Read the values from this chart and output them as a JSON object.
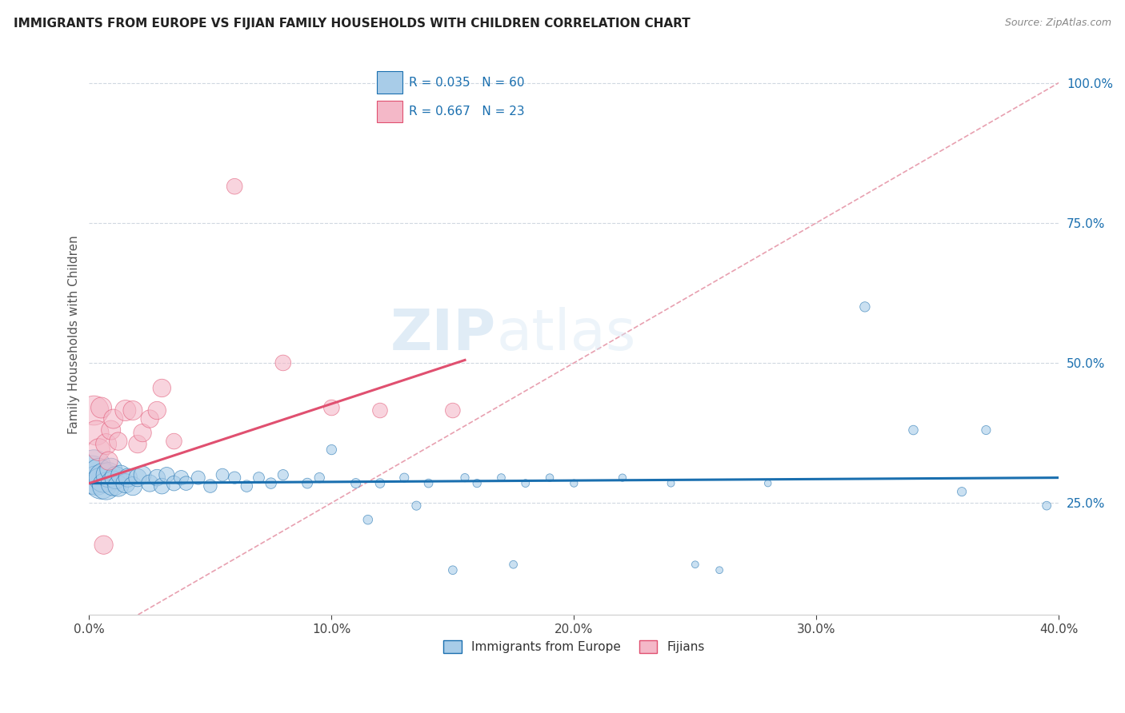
{
  "title": "IMMIGRANTS FROM EUROPE VS FIJIAN FAMILY HOUSEHOLDS WITH CHILDREN CORRELATION CHART",
  "source": "Source: ZipAtlas.com",
  "xlabel_blue": "Immigrants from Europe",
  "xlabel_pink": "Fijians",
  "ylabel": "Family Households with Children",
  "xmin": 0.0,
  "xmax": 0.4,
  "ymin": 0.05,
  "ymax": 1.05,
  "R_blue": 0.035,
  "N_blue": 60,
  "R_pink": 0.667,
  "N_pink": 23,
  "color_blue": "#a8cce8",
  "color_pink": "#f4b8c8",
  "trendline_blue": "#1a6faf",
  "trendline_pink": "#e05070",
  "ref_line_color": "#e8a0b0",
  "yticks": [
    0.25,
    0.5,
    0.75,
    1.0
  ],
  "ytick_labels": [
    "25.0%",
    "50.0%",
    "75.0%",
    "100.0%"
  ],
  "xticks": [
    0.0,
    0.1,
    0.2,
    0.3,
    0.4
  ],
  "xtick_labels": [
    "0.0%",
    "10.0%",
    "20.0%",
    "30.0%",
    "40.0%"
  ],
  "blue_points": [
    [
      0.001,
      0.3
    ],
    [
      0.002,
      0.315
    ],
    [
      0.003,
      0.29
    ],
    [
      0.004,
      0.305
    ],
    [
      0.005,
      0.285
    ],
    [
      0.006,
      0.295
    ],
    [
      0.007,
      0.28
    ],
    [
      0.008,
      0.3
    ],
    [
      0.009,
      0.31
    ],
    [
      0.01,
      0.285
    ],
    [
      0.011,
      0.295
    ],
    [
      0.012,
      0.28
    ],
    [
      0.013,
      0.3
    ],
    [
      0.015,
      0.285
    ],
    [
      0.016,
      0.295
    ],
    [
      0.018,
      0.28
    ],
    [
      0.02,
      0.295
    ],
    [
      0.022,
      0.3
    ],
    [
      0.025,
      0.285
    ],
    [
      0.028,
      0.295
    ],
    [
      0.03,
      0.28
    ],
    [
      0.032,
      0.3
    ],
    [
      0.035,
      0.285
    ],
    [
      0.038,
      0.295
    ],
    [
      0.04,
      0.285
    ],
    [
      0.045,
      0.295
    ],
    [
      0.05,
      0.28
    ],
    [
      0.055,
      0.3
    ],
    [
      0.06,
      0.295
    ],
    [
      0.065,
      0.28
    ],
    [
      0.07,
      0.295
    ],
    [
      0.075,
      0.285
    ],
    [
      0.08,
      0.3
    ],
    [
      0.09,
      0.285
    ],
    [
      0.095,
      0.295
    ],
    [
      0.1,
      0.345
    ],
    [
      0.11,
      0.285
    ],
    [
      0.115,
      0.22
    ],
    [
      0.12,
      0.285
    ],
    [
      0.13,
      0.295
    ],
    [
      0.135,
      0.245
    ],
    [
      0.14,
      0.285
    ],
    [
      0.15,
      0.13
    ],
    [
      0.155,
      0.295
    ],
    [
      0.16,
      0.285
    ],
    [
      0.17,
      0.295
    ],
    [
      0.175,
      0.14
    ],
    [
      0.18,
      0.285
    ],
    [
      0.19,
      0.295
    ],
    [
      0.2,
      0.285
    ],
    [
      0.22,
      0.295
    ],
    [
      0.24,
      0.285
    ],
    [
      0.25,
      0.14
    ],
    [
      0.26,
      0.13
    ],
    [
      0.28,
      0.285
    ],
    [
      0.32,
      0.6
    ],
    [
      0.34,
      0.38
    ],
    [
      0.36,
      0.27
    ],
    [
      0.37,
      0.38
    ],
    [
      0.395,
      0.245
    ]
  ],
  "pink_points": [
    [
      0.002,
      0.415
    ],
    [
      0.003,
      0.375
    ],
    [
      0.004,
      0.345
    ],
    [
      0.005,
      0.42
    ],
    [
      0.006,
      0.175
    ],
    [
      0.007,
      0.355
    ],
    [
      0.008,
      0.325
    ],
    [
      0.009,
      0.38
    ],
    [
      0.01,
      0.4
    ],
    [
      0.012,
      0.36
    ],
    [
      0.015,
      0.415
    ],
    [
      0.018,
      0.415
    ],
    [
      0.02,
      0.355
    ],
    [
      0.022,
      0.375
    ],
    [
      0.025,
      0.4
    ],
    [
      0.028,
      0.415
    ],
    [
      0.03,
      0.455
    ],
    [
      0.035,
      0.36
    ],
    [
      0.06,
      0.815
    ],
    [
      0.08,
      0.5
    ],
    [
      0.1,
      0.42
    ],
    [
      0.12,
      0.415
    ],
    [
      0.15,
      0.415
    ]
  ],
  "blue_sizes": [
    1200,
    900,
    700,
    600,
    800,
    700,
    600,
    500,
    400,
    500,
    400,
    350,
    300,
    300,
    280,
    280,
    260,
    250,
    230,
    220,
    200,
    190,
    180,
    170,
    160,
    150,
    140,
    130,
    120,
    110,
    100,
    95,
    90,
    85,
    80,
    80,
    75,
    70,
    70,
    65,
    65,
    60,
    60,
    55,
    55,
    50,
    50,
    50,
    48,
    45,
    45,
    42,
    40,
    40,
    38,
    80,
    70,
    65,
    65,
    60
  ],
  "pink_sizes": [
    700,
    500,
    400,
    350,
    280,
    350,
    280,
    300,
    300,
    260,
    350,
    300,
    260,
    260,
    260,
    260,
    260,
    200,
    200,
    200,
    200,
    180,
    180
  ],
  "blue_trendline": [
    0.0,
    0.4,
    0.285,
    0.295
  ],
  "pink_trendline": [
    0.0,
    0.155,
    0.285,
    0.505
  ],
  "ref_line": [
    0.0,
    0.4,
    0.0,
    1.0
  ]
}
